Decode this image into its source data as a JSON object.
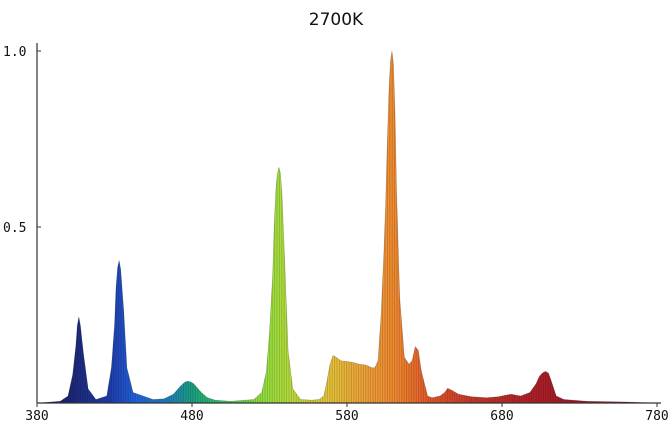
{
  "chart_data": {
    "type": "area",
    "title": "2700K",
    "xlabel": "",
    "ylabel": "",
    "xlim": [
      380,
      780
    ],
    "ylim": [
      0,
      1.0
    ],
    "x_ticks": [
      "380",
      "480",
      "580",
      "680",
      "780"
    ],
    "y_ticks": [
      "0.5",
      "1.0"
    ],
    "grid": false,
    "legend": "none",
    "fill": "wavelength spectrum colors",
    "series": [
      {
        "x": [
          380,
          395,
          400,
          403,
          405,
          406,
          407,
          408,
          410,
          413,
          418,
          425,
          428,
          430,
          431,
          432,
          433,
          434,
          436,
          438,
          442,
          455,
          462,
          468,
          472,
          475,
          477,
          479,
          481,
          483,
          486,
          490,
          495,
          505,
          520,
          525,
          528,
          530,
          532,
          533,
          534,
          535,
          536,
          537,
          538,
          540,
          542,
          545,
          550,
          557,
          562,
          565,
          567,
          569,
          571,
          573,
          576,
          580,
          584,
          588,
          592,
          596,
          598,
          600,
          602,
          604,
          605,
          606,
          607,
          608,
          609,
          610,
          611,
          612,
          614,
          617,
          620,
          622,
          623,
          624,
          626,
          628,
          630,
          632,
          635,
          640,
          643,
          645,
          648,
          652,
          660,
          670,
          678,
          682,
          686,
          692,
          698,
          702,
          704,
          706,
          708,
          710,
          712,
          715,
          720,
          735,
          760,
          780
        ],
        "y": [
          0.0,
          0.005,
          0.02,
          0.08,
          0.16,
          0.22,
          0.245,
          0.22,
          0.14,
          0.04,
          0.01,
          0.02,
          0.1,
          0.22,
          0.33,
          0.385,
          0.405,
          0.38,
          0.26,
          0.1,
          0.03,
          0.01,
          0.012,
          0.025,
          0.045,
          0.058,
          0.062,
          0.06,
          0.055,
          0.045,
          0.03,
          0.015,
          0.008,
          0.005,
          0.01,
          0.03,
          0.09,
          0.2,
          0.36,
          0.5,
          0.6,
          0.65,
          0.67,
          0.655,
          0.6,
          0.38,
          0.15,
          0.04,
          0.01,
          0.008,
          0.01,
          0.02,
          0.06,
          0.11,
          0.135,
          0.13,
          0.12,
          0.118,
          0.115,
          0.11,
          0.108,
          0.1,
          0.1,
          0.12,
          0.25,
          0.45,
          0.58,
          0.74,
          0.88,
          0.97,
          1.0,
          0.96,
          0.82,
          0.6,
          0.3,
          0.13,
          0.11,
          0.12,
          0.14,
          0.16,
          0.15,
          0.09,
          0.055,
          0.02,
          0.015,
          0.02,
          0.03,
          0.042,
          0.035,
          0.025,
          0.018,
          0.015,
          0.018,
          0.022,
          0.025,
          0.02,
          0.03,
          0.055,
          0.075,
          0.085,
          0.09,
          0.085,
          0.06,
          0.02,
          0.01,
          0.005,
          0.003,
          0.0
        ]
      }
    ]
  }
}
